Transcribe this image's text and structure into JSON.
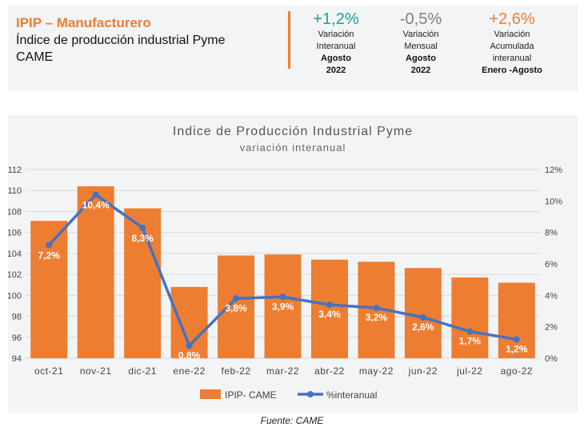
{
  "header": {
    "title": "IPIP – Manufacturero",
    "subtitle_line1": "Índice de producción industrial Pyme",
    "subtitle_line2": "CAME"
  },
  "kpis": [
    {
      "value": "+1,2%",
      "color": "#1aa19a",
      "label1": "Variación",
      "label2": "Interanual",
      "period1": "Agosto",
      "period2": "2022"
    },
    {
      "value": "-0,5%",
      "color": "#7f7f7f",
      "label1": "Variación",
      "label2": "Mensual",
      "period1": "Agosto",
      "period2": "2022"
    },
    {
      "value": "+2,6%",
      "color": "#ed7d31",
      "label1": "Variación",
      "label2": "Acumulada",
      "label3": "interanual",
      "period1": "Enero -Agosto"
    }
  ],
  "source": "Fuente: CAME",
  "chart_data": {
    "type": "bar",
    "title": "Indice de Producción Industrial Pyme",
    "subtitle": "variación interanual",
    "categories": [
      "oct-21",
      "nov-21",
      "dic-21",
      "ene-22",
      "feb-22",
      "mar-22",
      "abr-22",
      "may-22",
      "jun-22",
      "jul-22",
      "ago-22"
    ],
    "series": [
      {
        "name": "IPIP- CAME",
        "type": "bar",
        "axis": "left",
        "color": "#ed7d31",
        "values": [
          107.1,
          110.4,
          108.3,
          100.8,
          103.8,
          103.9,
          103.4,
          103.2,
          102.6,
          101.7,
          101.2
        ]
      },
      {
        "name": "%interanual",
        "type": "line",
        "axis": "right",
        "color": "#4472c4",
        "values": [
          7.2,
          10.4,
          8.3,
          0.8,
          3.8,
          3.9,
          3.4,
          3.2,
          2.6,
          1.7,
          1.2
        ],
        "labels": [
          "7,2%",
          "10,4%",
          "8,3%",
          "0,8%",
          "3,8%",
          "3,9%",
          "3,4%",
          "3,2%",
          "2,6%",
          "1,7%",
          "1,2%"
        ]
      }
    ],
    "y_left": {
      "min": 94,
      "max": 112,
      "ticks": [
        "94",
        "96",
        "98",
        "100",
        "102",
        "104",
        "106",
        "108",
        "110",
        "112"
      ]
    },
    "y_right": {
      "min": 0,
      "max": 12,
      "ticks": [
        "0%",
        "2%",
        "4%",
        "6%",
        "8%",
        "10%",
        "12%"
      ]
    },
    "grid": true,
    "legend_position": "bottom"
  }
}
